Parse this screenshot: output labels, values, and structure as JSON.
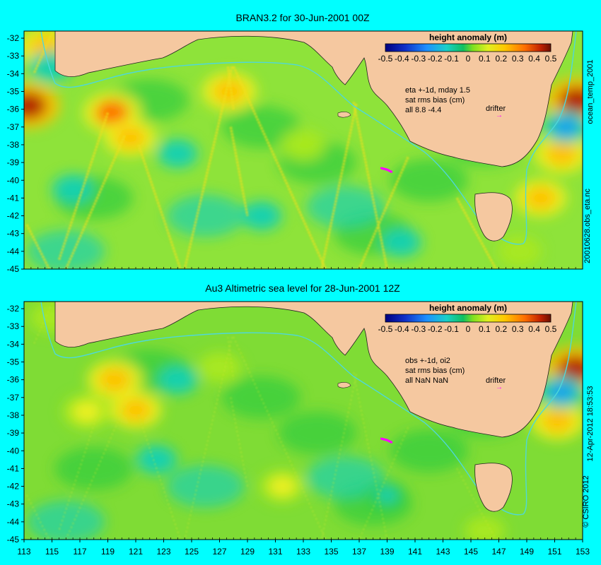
{
  "colors": {
    "background": "#00ffff",
    "land": "#f5c8a0",
    "ocean_base": "#8ee33a",
    "isobath": "#4fd8d8",
    "drifter": "#ff00ff"
  },
  "colorbar": {
    "title": "height anomaly (m)",
    "ticks": [
      "-0.5",
      "-0.4",
      "-0.3",
      "-0.2",
      "-0.1",
      "0",
      "0.1",
      "0.2",
      "0.3",
      "0.4",
      "0.5"
    ]
  },
  "axes": {
    "lon_ticks": [
      "113",
      "115",
      "117",
      "119",
      "121",
      "123",
      "125",
      "127",
      "129",
      "131",
      "133",
      "135",
      "137",
      "139",
      "141",
      "143",
      "145",
      "147",
      "149",
      "151",
      "153"
    ],
    "lat_ticks": [
      "-32",
      "-33",
      "-34",
      "-35",
      "-36",
      "-37",
      "-38",
      "-39",
      "-40",
      "-41",
      "-42",
      "-43",
      "-44",
      "-45"
    ],
    "lon_range": [
      113,
      153
    ],
    "lat_range": [
      -45,
      -31.6
    ]
  },
  "panels": [
    {
      "title": "BRAN3.2 for 30-Jun-2001 00Z",
      "info_lines": [
        "eta +-1d, mday 1.5",
        "sat rms bias (cm)",
        "all 8.8 -4.4"
      ],
      "drifter_label": "drifter",
      "side_label": "ocean_temp_2001",
      "side_label2": "20010628.obs_eta.nc"
    },
    {
      "title": "Au3 Altimetric sea level  for 28-Jun-2001 12Z",
      "info_lines": [
        "obs +-1d, oi2",
        "sat rms bias (cm)",
        "all NaN NaN"
      ],
      "drifter_label": "drifter",
      "side_label": "12-Apr-2012 18:53:53",
      "side_label2": "© CSIRO 2012"
    }
  ],
  "map_data": {
    "anomaly_blobs_top": [
      {
        "lon": 113.3,
        "lat": -35.8,
        "value": 0.5
      },
      {
        "lon": 114.5,
        "lat": -32.5,
        "value": 0.35
      },
      {
        "lon": 119.3,
        "lat": -36.2,
        "value": 0.4
      },
      {
        "lon": 120.6,
        "lat": -37.6,
        "value": 0.3
      },
      {
        "lon": 127.7,
        "lat": -35.0,
        "value": 0.35
      },
      {
        "lon": 114.9,
        "lat": -33.6,
        "value": -0.15
      },
      {
        "lon": 116.5,
        "lat": -40.5,
        "value": -0.12
      },
      {
        "lon": 124.0,
        "lat": -38.5,
        "value": -0.1
      },
      {
        "lon": 130.0,
        "lat": -42.0,
        "value": -0.1
      },
      {
        "lon": 140.0,
        "lat": -43.5,
        "value": -0.1
      },
      {
        "lon": 152.6,
        "lat": -35.5,
        "value": 0.5
      },
      {
        "lon": 151.5,
        "lat": -38.5,
        "value": 0.35
      },
      {
        "lon": 150.0,
        "lat": -41.0,
        "value": 0.3
      },
      {
        "lon": 151.8,
        "lat": -37.0,
        "value": -0.2
      },
      {
        "lon": 133.0,
        "lat": -38.0,
        "value": 0.15
      },
      {
        "lon": 148.5,
        "lat": -44.0,
        "value": 0.15
      }
    ],
    "anomaly_blobs_bottom": [
      {
        "lon": 119.5,
        "lat": -36.0,
        "value": 0.35
      },
      {
        "lon": 117.5,
        "lat": -37.8,
        "value": 0.25
      },
      {
        "lon": 121.0,
        "lat": -37.7,
        "value": 0.3
      },
      {
        "lon": 115.0,
        "lat": -32.5,
        "value": 0.15
      },
      {
        "lon": 127.0,
        "lat": -35.3,
        "value": 0.15
      },
      {
        "lon": 131.5,
        "lat": -42.0,
        "value": 0.2
      },
      {
        "lon": 152.5,
        "lat": -35.4,
        "value": 0.5
      },
      {
        "lon": 151.2,
        "lat": -38.3,
        "value": 0.35
      },
      {
        "lon": 151.5,
        "lat": -36.7,
        "value": -0.2
      },
      {
        "lon": 124.0,
        "lat": -36.0,
        "value": -0.1
      },
      {
        "lon": 122.5,
        "lat": -40.5,
        "value": -0.1
      },
      {
        "lon": 139.0,
        "lat": -42.5,
        "value": -0.08
      },
      {
        "lon": 146.0,
        "lat": -44.5,
        "value": 0.1
      }
    ],
    "sat_tracks_top": [
      {
        "from": [
          113.2,
          -42.5
        ],
        "to": [
          114.8,
          -45.0
        ]
      },
      {
        "from": [
          115.0,
          -31.7
        ],
        "to": [
          113.7,
          -34.0
        ]
      },
      {
        "from": [
          119.0,
          -36.2
        ],
        "to": [
          115.5,
          -44.5
        ]
      },
      {
        "from": [
          120.2,
          -37.5
        ],
        "to": [
          116.0,
          -45.0
        ]
      },
      {
        "from": [
          121.2,
          -38.0
        ],
        "to": [
          124.2,
          -45.0
        ]
      },
      {
        "from": [
          127.9,
          -33.6
        ],
        "to": [
          124.5,
          -45.0
        ]
      },
      {
        "from": [
          127.6,
          -33.6
        ],
        "to": [
          128.0,
          -36.0
        ]
      },
      {
        "from": [
          128.0,
          -33.6
        ],
        "to": [
          134.6,
          -45.0
        ]
      },
      {
        "from": [
          136.6,
          -35.6
        ],
        "to": [
          139.0,
          -45.0
        ]
      },
      {
        "from": [
          136.8,
          -35.7
        ],
        "to": [
          134.3,
          -45.0
        ]
      },
      {
        "from": [
          140.5,
          -38.7
        ],
        "to": [
          137.0,
          -45.0
        ]
      },
      {
        "from": [
          144.0,
          -41.0
        ],
        "to": [
          146.8,
          -45.0
        ]
      },
      {
        "from": [
          127.8,
          -37.0
        ],
        "to": [
          129.0,
          -42.0
        ]
      }
    ],
    "drifter": {
      "lon": 139.0,
      "lat": -39.4,
      "label_lon": 146.8,
      "label_lat": -36.3
    }
  }
}
